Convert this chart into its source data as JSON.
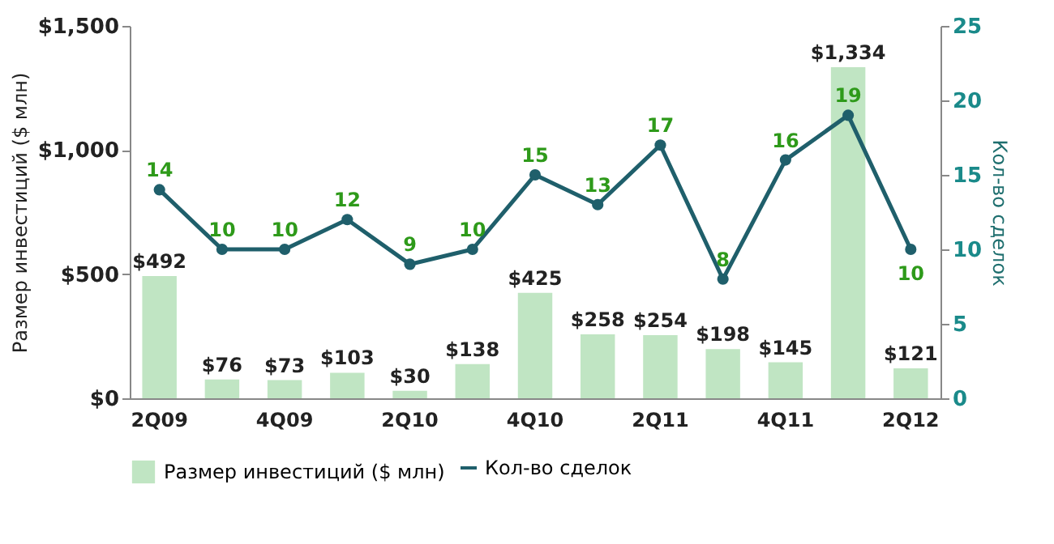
{
  "chart_data": {
    "type": "bar",
    "categories": [
      "2Q09",
      null,
      "4Q09",
      null,
      "2Q10",
      null,
      "4Q10",
      null,
      "2Q11",
      null,
      "4Q11",
      null,
      "2Q12"
    ],
    "ylabel": "Размер инвестиций ($ млн)",
    "y2label": "Кол-во сделок",
    "ylim": [
      0,
      1500
    ],
    "yticks": [
      {
        "value": 0,
        "label": "$0"
      },
      {
        "value": 500,
        "label": "$500"
      },
      {
        "value": 1000,
        "label": "$1,000"
      },
      {
        "value": 1500,
        "label": "$1,500"
      }
    ],
    "y2lim": [
      0,
      25
    ],
    "y2ticks": [
      0,
      5,
      10,
      15,
      20,
      25
    ],
    "series": [
      {
        "name": "Размер инвестиций ($ млн)",
        "color": "#b9e2bd",
        "values": [
          492,
          76,
          73,
          103,
          30,
          138,
          425,
          258,
          254,
          198,
          145,
          1334,
          121
        ],
        "value_labels": [
          "$492",
          "$76",
          "$73",
          "$103",
          "$30",
          "$138",
          "$425",
          "$258",
          "$254",
          "$198",
          "$145",
          "$1,334",
          "$121"
        ]
      },
      {
        "name": "Кол-во сделок",
        "type": "line",
        "axis": "y2",
        "color": "#1f5f6b",
        "marker": "circle",
        "line_style": "solid",
        "values": [
          14,
          10,
          10,
          12,
          9,
          10,
          15,
          13,
          17,
          8,
          16,
          19,
          10
        ],
        "value_labels": [
          "14",
          "10",
          "10",
          "12",
          "9",
          "10",
          "15",
          "13",
          "17",
          "8",
          "16",
          "19",
          "10"
        ]
      }
    ],
    "legend": "bottom",
    "grid": false
  }
}
